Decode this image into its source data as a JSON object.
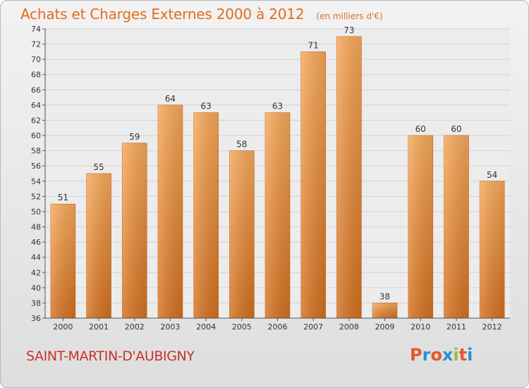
{
  "chart_data": {
    "type": "bar",
    "title": "Achats et Charges Externes 2000 à 2012",
    "subtitle": "(en milliers d'€)",
    "categories": [
      "2000",
      "2001",
      "2002",
      "2003",
      "2004",
      "2005",
      "2006",
      "2007",
      "2008",
      "2009",
      "2010",
      "2011",
      "2012"
    ],
    "values": [
      51,
      55,
      59,
      64,
      63,
      58,
      63,
      71,
      73,
      38,
      60,
      60,
      54
    ],
    "ylim": [
      36,
      74
    ],
    "yticks": [
      36,
      38,
      40,
      42,
      44,
      46,
      48,
      50,
      52,
      54,
      56,
      58,
      60,
      62,
      64,
      66,
      68,
      70,
      72,
      74
    ],
    "grid": true,
    "bar_color": "#f0913a"
  },
  "footer": {
    "place": "SAINT-MARTIN-D'AUBIGNY",
    "logo_text": "Proxiti",
    "logo_colors": [
      "#e8562a",
      "#2c8fd1",
      "#e8562a",
      "#2c8fd1",
      "#8ac23f",
      "#e8562a",
      "#2c8fd1"
    ]
  }
}
